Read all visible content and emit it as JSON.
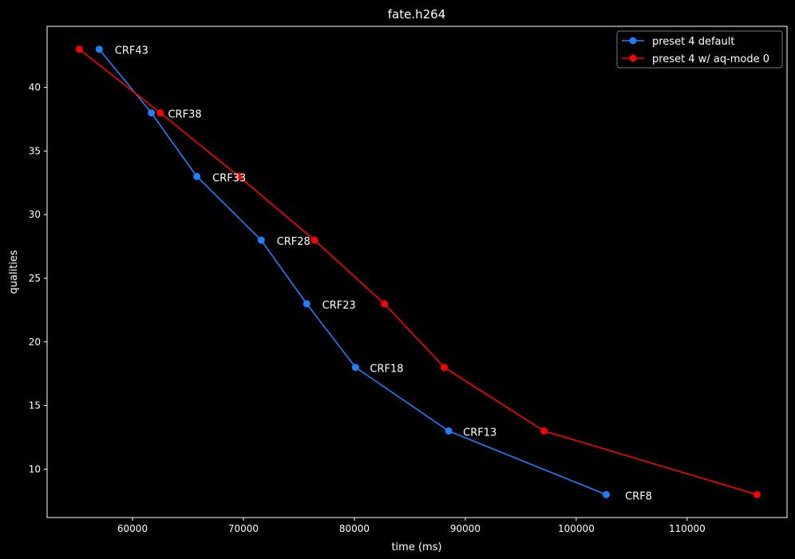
{
  "chart_data": {
    "type": "line",
    "title": "fate.h264",
    "xlabel": "time (ms)",
    "ylabel": "qualities",
    "xlim": [
      52300,
      119000
    ],
    "ylim": [
      6.2,
      44.8
    ],
    "xticks": [
      60000,
      70000,
      80000,
      90000,
      100000,
      110000
    ],
    "yticks": [
      10,
      15,
      20,
      25,
      30,
      35,
      40
    ],
    "grid": false,
    "legend_position": "top-right",
    "colors": {
      "background": "#000000",
      "foreground": "#ffffff"
    },
    "series": [
      {
        "name": "preset 4 default",
        "color": "#1f7fff",
        "points": [
          {
            "x": 57000,
            "y": 43
          },
          {
            "x": 61700,
            "y": 38
          },
          {
            "x": 65800,
            "y": 33
          },
          {
            "x": 71600,
            "y": 28
          },
          {
            "x": 75700,
            "y": 23
          },
          {
            "x": 80100,
            "y": 18
          },
          {
            "x": 88500,
            "y": 13
          },
          {
            "x": 102700,
            "y": 8
          }
        ]
      },
      {
        "name": "preset 4 w/ aq-mode 0",
        "color": "#ff0000",
        "points": [
          {
            "x": 55200,
            "y": 43
          },
          {
            "x": 62500,
            "y": 38
          },
          {
            "x": 69600,
            "y": 33
          },
          {
            "x": 76400,
            "y": 28
          },
          {
            "x": 82700,
            "y": 23
          },
          {
            "x": 88100,
            "y": 18
          },
          {
            "x": 97100,
            "y": 13
          },
          {
            "x": 116300,
            "y": 8
          }
        ]
      }
    ],
    "annotations": [
      {
        "text": "CRF43",
        "x": 58400,
        "y": 43
      },
      {
        "text": "CRF38",
        "x": 63200,
        "y": 38
      },
      {
        "text": "CRF33",
        "x": 67200,
        "y": 33
      },
      {
        "text": "CRF28",
        "x": 73000,
        "y": 28
      },
      {
        "text": "CRF23",
        "x": 77100,
        "y": 23
      },
      {
        "text": "CRF18",
        "x": 81400,
        "y": 18
      },
      {
        "text": "CRF13",
        "x": 89800,
        "y": 13
      },
      {
        "text": "CRF8",
        "x": 104400,
        "y": 8
      }
    ]
  }
}
